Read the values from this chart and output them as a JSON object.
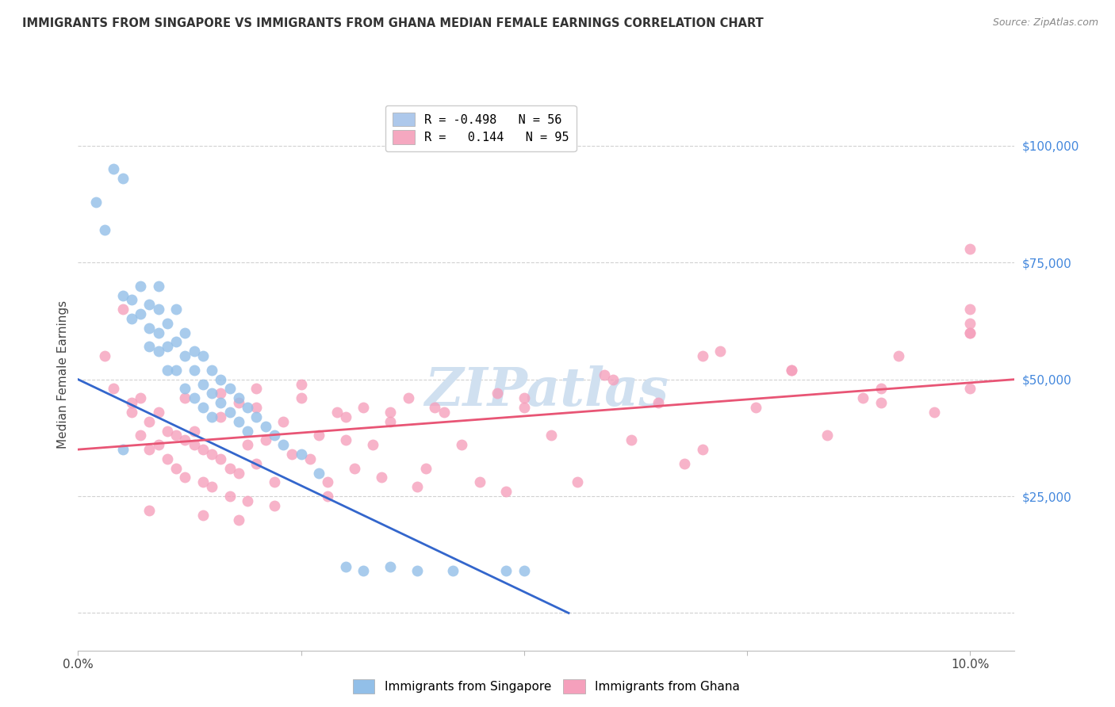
{
  "title": "IMMIGRANTS FROM SINGAPORE VS IMMIGRANTS FROM GHANA MEDIAN FEMALE EARNINGS CORRELATION CHART",
  "source": "Source: ZipAtlas.com",
  "ylabel": "Median Female Earnings",
  "yticks": [
    0,
    25000,
    50000,
    75000,
    100000
  ],
  "ytick_labels": [
    "",
    "$25,000",
    "$50,000",
    "$75,000",
    "$100,000"
  ],
  "xlim": [
    0.0,
    0.105
  ],
  "ylim": [
    -8000,
    110000
  ],
  "legend_entries": [
    {
      "label": "R = -0.498   N = 56",
      "color": "#adc8eb"
    },
    {
      "label": "R =   0.144   N = 95",
      "color": "#f5a8c0"
    }
  ],
  "singapore_color": "#92bfe8",
  "ghana_color": "#f5a0bc",
  "singapore_line_color": "#3366cc",
  "ghana_line_color": "#e85575",
  "watermark": "ZIPatlas",
  "watermark_color": "#d0e0f0",
  "singapore_scatter_x": [
    0.002,
    0.003,
    0.004,
    0.005,
    0.005,
    0.006,
    0.006,
    0.007,
    0.007,
    0.008,
    0.008,
    0.008,
    0.009,
    0.009,
    0.009,
    0.009,
    0.01,
    0.01,
    0.01,
    0.011,
    0.011,
    0.011,
    0.012,
    0.012,
    0.012,
    0.013,
    0.013,
    0.013,
    0.014,
    0.014,
    0.014,
    0.015,
    0.015,
    0.015,
    0.016,
    0.016,
    0.017,
    0.017,
    0.018,
    0.018,
    0.019,
    0.019,
    0.02,
    0.021,
    0.022,
    0.023,
    0.025,
    0.027,
    0.03,
    0.032,
    0.005,
    0.035,
    0.038,
    0.042,
    0.048,
    0.05
  ],
  "singapore_scatter_y": [
    88000,
    82000,
    95000,
    93000,
    68000,
    67000,
    63000,
    70000,
    64000,
    66000,
    61000,
    57000,
    65000,
    60000,
    56000,
    70000,
    62000,
    57000,
    52000,
    65000,
    58000,
    52000,
    60000,
    55000,
    48000,
    56000,
    52000,
    46000,
    55000,
    49000,
    44000,
    52000,
    47000,
    42000,
    50000,
    45000,
    48000,
    43000,
    46000,
    41000,
    44000,
    39000,
    42000,
    40000,
    38000,
    36000,
    34000,
    30000,
    10000,
    9000,
    35000,
    10000,
    9000,
    9000,
    9000,
    9000
  ],
  "ghana_scatter_x": [
    0.003,
    0.004,
    0.005,
    0.006,
    0.007,
    0.007,
    0.008,
    0.008,
    0.009,
    0.009,
    0.01,
    0.01,
    0.011,
    0.011,
    0.012,
    0.012,
    0.013,
    0.013,
    0.014,
    0.014,
    0.015,
    0.015,
    0.016,
    0.016,
    0.017,
    0.017,
    0.018,
    0.018,
    0.019,
    0.019,
    0.02,
    0.02,
    0.021,
    0.022,
    0.023,
    0.024,
    0.025,
    0.026,
    0.027,
    0.028,
    0.029,
    0.03,
    0.031,
    0.032,
    0.033,
    0.034,
    0.035,
    0.037,
    0.039,
    0.041,
    0.043,
    0.045,
    0.047,
    0.05,
    0.053,
    0.056,
    0.059,
    0.062,
    0.065,
    0.068,
    0.072,
    0.076,
    0.08,
    0.084,
    0.088,
    0.092,
    0.096,
    0.1,
    0.1,
    0.1,
    0.006,
    0.012,
    0.016,
    0.02,
    0.025,
    0.03,
    0.035,
    0.04,
    0.05,
    0.06,
    0.07,
    0.08,
    0.09,
    0.1,
    0.1,
    0.1,
    0.008,
    0.014,
    0.018,
    0.022,
    0.028,
    0.038,
    0.048,
    0.07,
    0.09
  ],
  "ghana_scatter_y": [
    55000,
    48000,
    65000,
    43000,
    46000,
    38000,
    41000,
    35000,
    43000,
    36000,
    39000,
    33000,
    38000,
    31000,
    37000,
    29000,
    36000,
    39000,
    35000,
    28000,
    34000,
    27000,
    33000,
    42000,
    31000,
    25000,
    45000,
    30000,
    36000,
    24000,
    44000,
    32000,
    37000,
    28000,
    41000,
    34000,
    46000,
    33000,
    38000,
    28000,
    43000,
    37000,
    31000,
    44000,
    36000,
    29000,
    41000,
    46000,
    31000,
    43000,
    36000,
    28000,
    47000,
    44000,
    38000,
    28000,
    51000,
    37000,
    45000,
    32000,
    56000,
    44000,
    52000,
    38000,
    46000,
    55000,
    43000,
    60000,
    48000,
    78000,
    45000,
    46000,
    47000,
    48000,
    49000,
    42000,
    43000,
    44000,
    46000,
    50000,
    55000,
    52000,
    48000,
    60000,
    65000,
    62000,
    22000,
    21000,
    20000,
    23000,
    25000,
    27000,
    26000,
    35000,
    45000
  ],
  "sg_line_x": [
    0.0,
    0.055
  ],
  "sg_line_y": [
    50000,
    0
  ],
  "gh_line_x": [
    0.0,
    0.105
  ],
  "gh_line_y": [
    35000,
    50000
  ]
}
